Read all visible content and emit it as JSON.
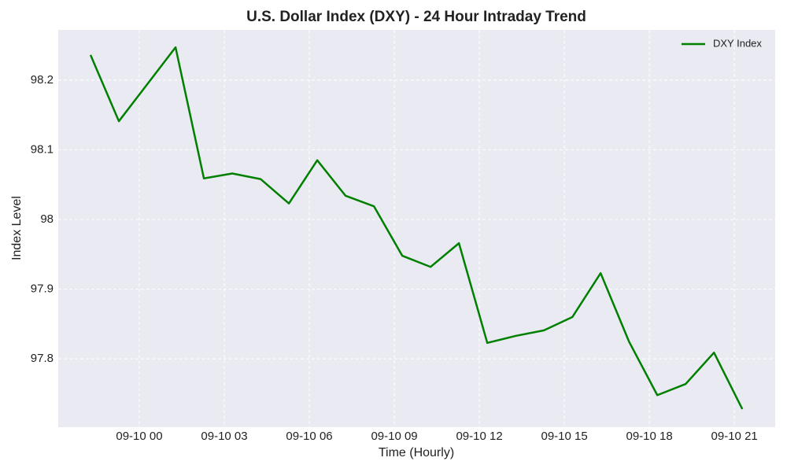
{
  "chart_data": {
    "type": "line",
    "title": "U.S. Dollar Index (DXY) - 24 Hour Intraday Trend",
    "x_label": "Time (Hourly)",
    "y_label": "Index Level",
    "x": [
      -1.72,
      -0.72,
      0.28,
      1.28,
      2.28,
      3.28,
      4.28,
      5.28,
      6.28,
      7.28,
      8.28,
      9.28,
      10.28,
      11.28,
      12.28,
      13.28,
      14.28,
      15.28,
      16.28,
      17.28,
      18.28,
      19.28,
      20.28,
      21.28
    ],
    "series": [
      {
        "name": "DXY Index",
        "color": "#008000",
        "values": [
          98.236,
          98.141,
          98.194,
          98.247,
          98.059,
          98.066,
          98.058,
          98.023,
          98.085,
          98.034,
          98.019,
          97.948,
          97.932,
          97.966,
          97.823,
          97.833,
          97.841,
          97.86,
          97.923,
          97.825,
          97.748,
          97.764,
          97.809,
          97.728
        ]
      }
    ],
    "xlim": [
      -2.86,
      22.44
    ],
    "ylim": [
      97.702,
      98.272
    ],
    "xticks": [
      {
        "value": 0,
        "label": "09-10 00"
      },
      {
        "value": 3,
        "label": "09-10 03"
      },
      {
        "value": 6,
        "label": "09-10 06"
      },
      {
        "value": 9,
        "label": "09-10 09"
      },
      {
        "value": 12,
        "label": "09-10 12"
      },
      {
        "value": 15,
        "label": "09-10 15"
      },
      {
        "value": 18,
        "label": "09-10 18"
      },
      {
        "value": 21,
        "label": "09-10 21"
      }
    ],
    "yticks": [
      97.8,
      97.9,
      98.0,
      98.1,
      98.2
    ],
    "grid": true,
    "legend": "upper right"
  }
}
